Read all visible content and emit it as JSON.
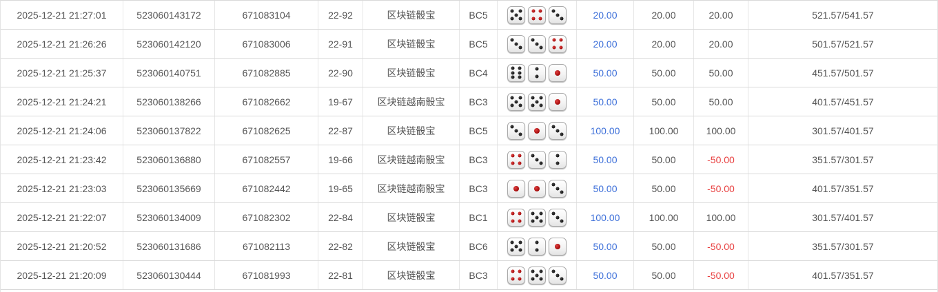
{
  "colors": {
    "link_blue": "#3c6fd9",
    "loss_red": "#e84040",
    "text": "#555555"
  },
  "dice_red_values": [
    1,
    4
  ],
  "table": {
    "rows": [
      {
        "time": "2025-12-21 21:27:01",
        "order_no": "523060143172",
        "bet_no": "671083104",
        "round": "22-92",
        "game_name": "区块链骰宝",
        "bet_type": "BC5",
        "dice": [
          5,
          4,
          3
        ],
        "bet_amount": "20.00",
        "valid_amount": "20.00",
        "win_loss": "20.00",
        "win_loss_negative": false,
        "balance": "521.57/541.57"
      },
      {
        "time": "2025-12-21 21:26:26",
        "order_no": "523060142120",
        "bet_no": "671083006",
        "round": "22-91",
        "game_name": "区块链骰宝",
        "bet_type": "BC5",
        "dice": [
          3,
          3,
          4
        ],
        "bet_amount": "20.00",
        "valid_amount": "20.00",
        "win_loss": "20.00",
        "win_loss_negative": false,
        "balance": "501.57/521.57"
      },
      {
        "time": "2025-12-21 21:25:37",
        "order_no": "523060140751",
        "bet_no": "671082885",
        "round": "22-90",
        "game_name": "区块链骰宝",
        "bet_type": "BC4",
        "dice": [
          6,
          2,
          1
        ],
        "bet_amount": "50.00",
        "valid_amount": "50.00",
        "win_loss": "50.00",
        "win_loss_negative": false,
        "balance": "451.57/501.57"
      },
      {
        "time": "2025-12-21 21:24:21",
        "order_no": "523060138266",
        "bet_no": "671082662",
        "round": "19-67",
        "game_name": "区块链越南骰宝",
        "bet_type": "BC3",
        "dice": [
          5,
          5,
          1
        ],
        "bet_amount": "50.00",
        "valid_amount": "50.00",
        "win_loss": "50.00",
        "win_loss_negative": false,
        "balance": "401.57/451.57"
      },
      {
        "time": "2025-12-21 21:24:06",
        "order_no": "523060137822",
        "bet_no": "671082625",
        "round": "22-87",
        "game_name": "区块链骰宝",
        "bet_type": "BC5",
        "dice": [
          3,
          1,
          3
        ],
        "bet_amount": "100.00",
        "valid_amount": "100.00",
        "win_loss": "100.00",
        "win_loss_negative": false,
        "balance": "301.57/401.57"
      },
      {
        "time": "2025-12-21 21:23:42",
        "order_no": "523060136880",
        "bet_no": "671082557",
        "round": "19-66",
        "game_name": "区块链越南骰宝",
        "bet_type": "BC3",
        "dice": [
          4,
          3,
          2
        ],
        "bet_amount": "50.00",
        "valid_amount": "50.00",
        "win_loss": "-50.00",
        "win_loss_negative": true,
        "balance": "351.57/301.57"
      },
      {
        "time": "2025-12-21 21:23:03",
        "order_no": "523060135669",
        "bet_no": "671082442",
        "round": "19-65",
        "game_name": "区块链越南骰宝",
        "bet_type": "BC3",
        "dice": [
          1,
          1,
          3
        ],
        "bet_amount": "50.00",
        "valid_amount": "50.00",
        "win_loss": "-50.00",
        "win_loss_negative": true,
        "balance": "401.57/351.57"
      },
      {
        "time": "2025-12-21 21:22:07",
        "order_no": "523060134009",
        "bet_no": "671082302",
        "round": "22-84",
        "game_name": "区块链骰宝",
        "bet_type": "BC1",
        "dice": [
          4,
          5,
          3
        ],
        "bet_amount": "100.00",
        "valid_amount": "100.00",
        "win_loss": "100.00",
        "win_loss_negative": false,
        "balance": "301.57/401.57"
      },
      {
        "time": "2025-12-21 21:20:52",
        "order_no": "523060131686",
        "bet_no": "671082113",
        "round": "22-82",
        "game_name": "区块链骰宝",
        "bet_type": "BC6",
        "dice": [
          5,
          2,
          1
        ],
        "bet_amount": "50.00",
        "valid_amount": "50.00",
        "win_loss": "-50.00",
        "win_loss_negative": true,
        "balance": "351.57/301.57"
      },
      {
        "time": "2025-12-21 21:20:09",
        "order_no": "523060130444",
        "bet_no": "671081993",
        "round": "22-81",
        "game_name": "区块链骰宝",
        "bet_type": "BC3",
        "dice": [
          4,
          5,
          3
        ],
        "bet_amount": "50.00",
        "valid_amount": "50.00",
        "win_loss": "-50.00",
        "win_loss_negative": true,
        "balance": "401.57/351.57"
      }
    ]
  }
}
